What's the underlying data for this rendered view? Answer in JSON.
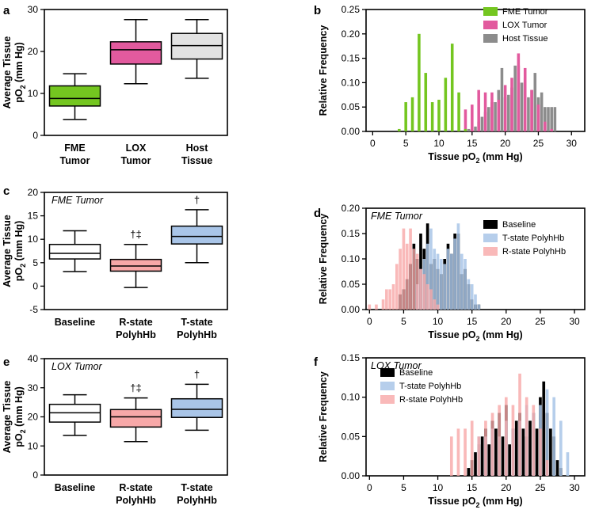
{
  "chart_data": [
    {
      "panel": "a",
      "type": "box",
      "annotation": "",
      "ylabel": "Average Tissue",
      "ylabel_sub": "(mm Hg)",
      "ylim": [
        0,
        30
      ],
      "yticks": [
        0,
        10,
        20,
        30
      ],
      "categories": [
        "FME Tumor",
        "LOX Tumor",
        "Host Tissue"
      ],
      "boxes": [
        {
          "name": "FME Tumor",
          "min": 3.8,
          "q1": 7.0,
          "median": 8.8,
          "q3": 11.8,
          "max": 14.7,
          "fill": "#74c620"
        },
        {
          "name": "LOX Tumor",
          "min": 12.3,
          "q1": 17.0,
          "median": 20.4,
          "q3": 22.3,
          "max": 27.6,
          "fill": "#e25a9e"
        },
        {
          "name": "Host Tissue",
          "min": 13.6,
          "q1": 18.2,
          "median": 21.4,
          "q3": 24.3,
          "max": 27.6,
          "fill": "#e2e2e2"
        }
      ],
      "marks": [
        "",
        "",
        ""
      ]
    },
    {
      "panel": "b",
      "type": "histogram",
      "annotation": "",
      "xlabel": "Tissue pO",
      "xlabel_sub": "(mm Hg)",
      "ylabel": "Relative Frequency",
      "xlim": [
        -1,
        32
      ],
      "ylim": [
        0,
        0.25
      ],
      "xticks": [
        0,
        5,
        10,
        15,
        20,
        25,
        30
      ],
      "yticks": [
        0.0,
        0.05,
        0.1,
        0.15,
        0.2,
        0.25
      ],
      "series": [
        {
          "name": "Host Tissue",
          "color": "#8c8c8c",
          "opacity": 1.0,
          "x": [
            14.5,
            15.5,
            16,
            16.5,
            17,
            17.5,
            18,
            18.5,
            19,
            19.5,
            20,
            20.5,
            21,
            21.5,
            22,
            22.5,
            23,
            23.5,
            24,
            24.5,
            25,
            25.5,
            26,
            26.5,
            27,
            27.5
          ],
          "y": [
            0.005,
            0.01,
            0.02,
            0.03,
            0.04,
            0.05,
            0.06,
            0.06,
            0.085,
            0.13,
            0.07,
            0.075,
            0.09,
            0.135,
            0.135,
            0.1,
            0.11,
            0.07,
            0.085,
            0.12,
            0.07,
            0.08,
            0.05,
            0.05,
            0.05,
            0.05
          ]
        },
        {
          "name": "LOX Tumor",
          "color": "#e25a9e",
          "opacity": 1.0,
          "x": [
            14,
            15,
            16,
            17,
            18,
            19,
            20,
            21,
            22,
            23,
            24,
            25,
            26,
            27
          ],
          "y": [
            0.045,
            0.055,
            0.085,
            0.08,
            0.08,
            0.065,
            0.095,
            0.11,
            0.16,
            0.13,
            0.085,
            0.055,
            0.02,
            0.005
          ]
        },
        {
          "name": "FME Tumor",
          "color": "#74c620",
          "opacity": 1.0,
          "x": [
            4,
            5,
            6,
            7,
            8,
            9,
            10,
            11,
            12,
            13,
            14
          ],
          "y": [
            0.005,
            0.06,
            0.07,
            0.2,
            0.12,
            0.06,
            0.065,
            0.11,
            0.18,
            0.08,
            0.005
          ]
        }
      ],
      "legend_order": [
        "FME Tumor",
        "LOX Tumor",
        "Host Tissue"
      ],
      "legend_position": "top-right"
    },
    {
      "panel": "c",
      "type": "box",
      "annotation": "FME Tumor",
      "ylabel": "Average Tissue",
      "ylabel_sub": "(mm Hg)",
      "ylim": [
        -5,
        20
      ],
      "yticks": [
        -5,
        0,
        5,
        10,
        15,
        20
      ],
      "categories": [
        "Baseline",
        "R-state PolyhHb",
        "T-state PolyhHb"
      ],
      "boxes": [
        {
          "name": "Baseline",
          "min": 3.1,
          "q1": 5.8,
          "median": 7.0,
          "q3": 8.9,
          "max": 11.8,
          "fill": "#ffffff"
        },
        {
          "name": "R-state PolyhHb",
          "min": -0.3,
          "q1": 3.2,
          "median": 4.3,
          "q3": 5.7,
          "max": 8.9,
          "fill": "#f7a8a8"
        },
        {
          "name": "T-state PolyhHb",
          "min": 5.0,
          "q1": 9.0,
          "median": 10.6,
          "q3": 12.8,
          "max": 16.3,
          "fill": "#a9c5e8"
        }
      ],
      "marks": [
        "",
        "†‡",
        "†"
      ]
    },
    {
      "panel": "d",
      "type": "histogram",
      "annotation": "FME Tumor",
      "xlabel": "Tissue pO",
      "xlabel_sub": "(mm Hg)",
      "ylabel": "Relative Frequency",
      "xlim": [
        -0.5,
        31.5
      ],
      "ylim": [
        0,
        0.2
      ],
      "xticks": [
        0,
        5,
        10,
        15,
        20,
        25,
        30
      ],
      "yticks": [
        0.0,
        0.05,
        0.1,
        0.15,
        0.2
      ],
      "series": [
        {
          "name": "Baseline",
          "color": "#000000",
          "opacity": 1.0,
          "x": [
            4.5,
            5,
            5.5,
            6,
            6.5,
            7,
            7.5,
            8,
            8.5,
            9,
            9.5,
            10,
            10.5,
            11,
            11.5,
            12,
            12.5,
            13,
            13.5,
            14,
            14.5,
            15,
            15.5,
            16
          ],
          "y": [
            0.03,
            0.04,
            0.06,
            0.09,
            0.13,
            0.1,
            0.15,
            0.12,
            0.17,
            0.09,
            0.1,
            0.08,
            0.07,
            0.1,
            0.13,
            0.11,
            0.15,
            0.15,
            0.07,
            0.08,
            0.05,
            0.02,
            0.01,
            0.01
          ]
        },
        {
          "name": "T-state PolyhHb",
          "color": "#a9c5e8",
          "opacity": 0.85,
          "x": [
            7,
            7.5,
            8,
            8.5,
            9,
            9.5,
            10,
            10.5,
            11,
            11.5,
            12,
            12.5,
            13,
            13.5,
            14,
            14.5,
            15,
            15.5,
            16
          ],
          "y": [
            0.05,
            0.08,
            0.1,
            0.13,
            0.16,
            0.12,
            0.11,
            0.1,
            0.09,
            0.12,
            0.11,
            0.14,
            0.17,
            0.11,
            0.1,
            0.06,
            0.05,
            0.03,
            0.01
          ]
        },
        {
          "name": "R-state PolyhHb",
          "color": "#f7a8a8",
          "opacity": 0.8,
          "x": [
            0,
            1,
            2,
            2.5,
            3,
            3.5,
            4,
            4.5,
            5,
            5.5,
            6,
            6.5,
            7,
            7.5,
            8,
            8.5,
            9,
            9.5,
            10
          ],
          "y": [
            0.01,
            0.01,
            0.02,
            0.04,
            0.04,
            0.05,
            0.09,
            0.12,
            0.16,
            0.13,
            0.16,
            0.12,
            0.11,
            0.08,
            0.07,
            0.05,
            0.04,
            0.02,
            0.01
          ]
        }
      ],
      "legend_order": [
        "Baseline",
        "T-state PolyhHb",
        "R-state PolyhHb"
      ],
      "legend_position": "top-right"
    },
    {
      "panel": "e",
      "type": "box",
      "annotation": "LOX Tumor",
      "ylabel": "Average Tissue",
      "ylabel_sub": "(mm Hg)",
      "ylim": [
        0,
        40
      ],
      "yticks": [
        0,
        10,
        20,
        30,
        40
      ],
      "categories": [
        "Baseline",
        "R-state PolyhHb",
        "T-state PolyhHb"
      ],
      "boxes": [
        {
          "name": "Baseline",
          "min": 13.6,
          "q1": 18.2,
          "median": 21.4,
          "q3": 24.3,
          "max": 27.6,
          "fill": "#ffffff"
        },
        {
          "name": "R-state PolyhHb",
          "min": 11.5,
          "q1": 16.5,
          "median": 20.0,
          "q3": 22.5,
          "max": 26.5,
          "fill": "#f7a8a8"
        },
        {
          "name": "T-state PolyhHb",
          "min": 15.4,
          "q1": 19.8,
          "median": 22.6,
          "q3": 26.2,
          "max": 31.2,
          "fill": "#a9c5e8"
        }
      ],
      "marks": [
        "",
        "†‡",
        "†"
      ]
    },
    {
      "panel": "f",
      "type": "histogram",
      "annotation": "LOX Tumor",
      "xlabel": "Tissue pO",
      "xlabel_sub": "(mm Hg)",
      "ylabel": "Relative Frequency",
      "xlim": [
        -0.5,
        31.5
      ],
      "ylim": [
        0,
        0.15
      ],
      "xticks": [
        0,
        5,
        10,
        15,
        20,
        25,
        30
      ],
      "yticks": [
        0.0,
        0.05,
        0.1,
        0.15
      ],
      "series": [
        {
          "name": "Baseline",
          "color": "#000000",
          "opacity": 1.0,
          "x": [
            14.5,
            15,
            15.5,
            16,
            16.5,
            17,
            17.5,
            18,
            18.5,
            19,
            19.5,
            20,
            20.5,
            21,
            21.5,
            22,
            22.5,
            23,
            23.5,
            24,
            24.5,
            25,
            25.5,
            26,
            26.5,
            27,
            27.5,
            28
          ],
          "y": [
            0.01,
            0.02,
            0.03,
            0.04,
            0.05,
            0.06,
            0.04,
            0.07,
            0.06,
            0.08,
            0.05,
            0.09,
            0.04,
            0.06,
            0.07,
            0.08,
            0.06,
            0.05,
            0.07,
            0.08,
            0.06,
            0.1,
            0.12,
            0.08,
            0.06,
            0.05,
            0.02,
            0.01
          ]
        },
        {
          "name": "T-state PolyhHb",
          "color": "#a9c5e8",
          "opacity": 0.85,
          "x": [
            16,
            17,
            18,
            19,
            20,
            21,
            22,
            23,
            24,
            25,
            26,
            27,
            28,
            29
          ],
          "y": [
            0.05,
            0.05,
            0.06,
            0.05,
            0.07,
            0.06,
            0.07,
            0.09,
            0.08,
            0.09,
            0.11,
            0.1,
            0.07,
            0.03
          ]
        },
        {
          "name": "R-state PolyhHb",
          "color": "#f7a8a8",
          "opacity": 0.8,
          "x": [
            12,
            13,
            14,
            15,
            16,
            17,
            18,
            19,
            20,
            21,
            22,
            23,
            24,
            25,
            26
          ],
          "y": [
            0.05,
            0.06,
            0.06,
            0.07,
            0.05,
            0.07,
            0.08,
            0.09,
            0.1,
            0.09,
            0.13,
            0.1,
            0.09,
            0.06,
            0.02
          ]
        }
      ],
      "legend_order": [
        "Baseline",
        "T-state PolyhHb",
        "R-state PolyhHb"
      ],
      "legend_position": "top-left"
    }
  ]
}
